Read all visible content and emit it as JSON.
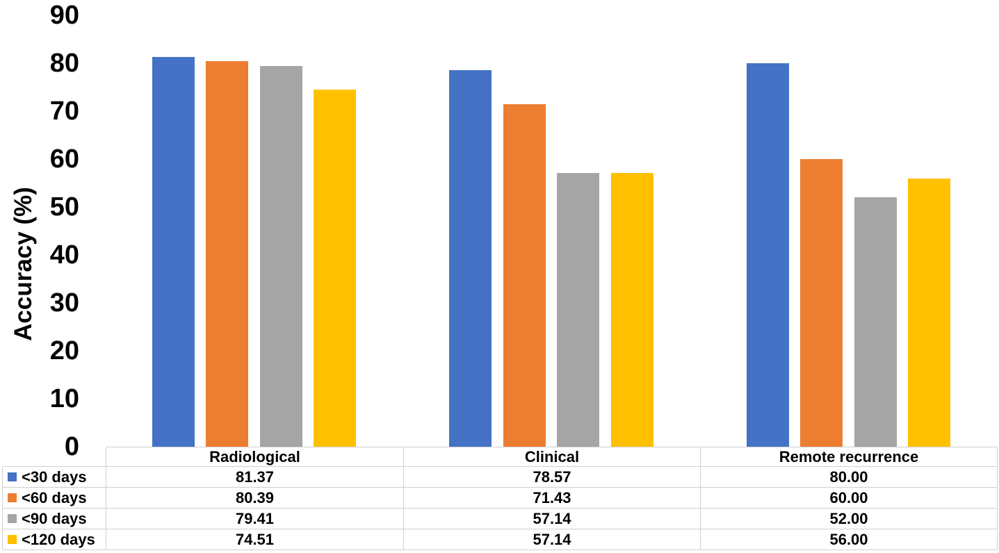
{
  "chart_data": {
    "type": "bar",
    "title": "",
    "xlabel": "",
    "ylabel": "Accuracy (%)",
    "categories": [
      "Radiological",
      "Clinical",
      "Remote recurrence"
    ],
    "series": [
      {
        "name": "<30 days",
        "color": "#4472C4",
        "values": [
          81.37,
          78.57,
          80.0
        ]
      },
      {
        "name": "<60 days",
        "color": "#ED7D31",
        "values": [
          80.39,
          71.43,
          60.0
        ]
      },
      {
        "name": "<90 days",
        "color": "#A5A5A5",
        "values": [
          79.41,
          57.14,
          52.0
        ]
      },
      {
        "name": "<120 days",
        "color": "#FFC000",
        "values": [
          74.51,
          57.14,
          56.0
        ]
      }
    ],
    "table_values": [
      [
        "81.37",
        "78.57",
        "80.00"
      ],
      [
        "80.39",
        "71.43",
        "60.00"
      ],
      [
        "79.41",
        "57.14",
        "52.00"
      ],
      [
        "74.51",
        "57.14",
        "56.00"
      ]
    ],
    "y_axis": {
      "min": 0,
      "max": 90,
      "step": 10,
      "ticks": [
        "0",
        "10",
        "20",
        "30",
        "40",
        "50",
        "60",
        "70",
        "80",
        "90"
      ]
    },
    "grid": false,
    "legend_position": "data-table-left",
    "data_table_shown": true,
    "colors": {
      "series_blue": "#4472C4",
      "series_orange": "#ED7D31",
      "series_gray": "#A5A5A5",
      "series_gold": "#FFC000",
      "table_border": "#d0d0d0",
      "text": "#000000"
    }
  }
}
